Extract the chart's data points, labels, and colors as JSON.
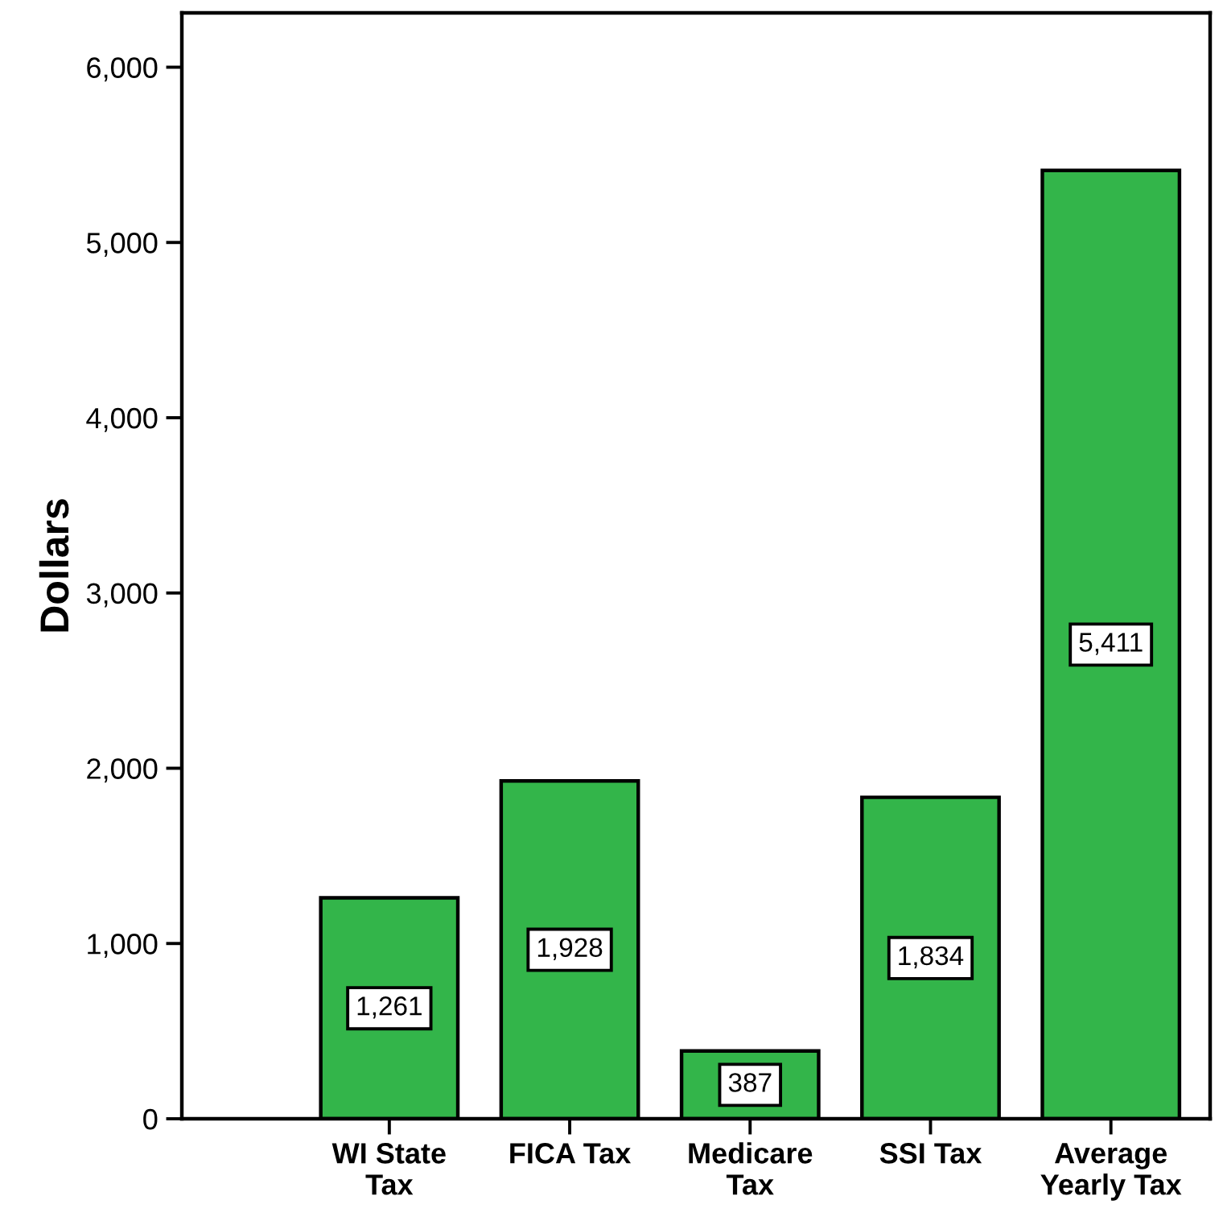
{
  "chart_data": {
    "type": "bar",
    "ylabel": "Dollars",
    "categories": [
      "WI State\nTax",
      "FICA Tax",
      "Medicare\nTax",
      "SSI Tax",
      "Average\nYearly Tax"
    ],
    "values": [
      1261,
      1928,
      387,
      1834,
      5411
    ],
    "value_labels": [
      "1,261",
      "1,928",
      "387",
      "1,834",
      "5,411"
    ],
    "color": "#33b54a",
    "ylim": [
      0,
      6310
    ],
    "yticks": [
      {
        "value": 0,
        "label": "0"
      },
      {
        "value": 1000,
        "label": "1,000"
      },
      {
        "value": 2000,
        "label": "2,000"
      },
      {
        "value": 3000,
        "label": "3,000"
      },
      {
        "value": 4000,
        "label": "4,000"
      },
      {
        "value": 5000,
        "label": "5,000"
      },
      {
        "value": 6000,
        "label": "6,000"
      }
    ],
    "grid": false,
    "legend": false
  }
}
